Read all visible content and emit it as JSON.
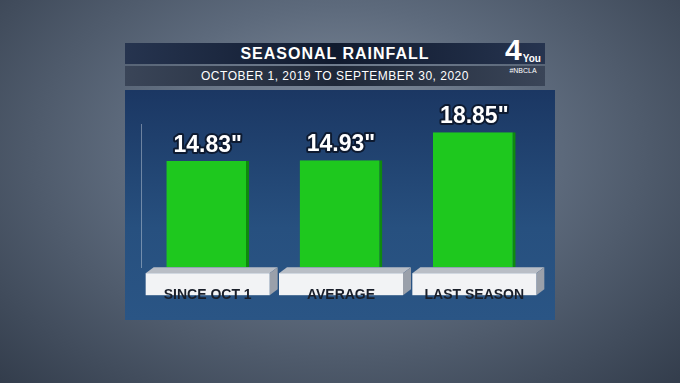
{
  "chart_data": {
    "type": "bar",
    "title": "SEASONAL RAINFALL",
    "subtitle": "OCTOBER 1, 2019 TO SEPTEMBER 30, 2020",
    "annotations": [
      "4",
      "You",
      "#NBCLA"
    ],
    "categories": [
      "SINCE OCT 1",
      "AVERAGE",
      "LAST SEASON"
    ],
    "values": [
      14.83,
      14.93,
      18.85
    ],
    "value_labels": [
      "14.83\"",
      "14.93\"",
      "18.85\""
    ],
    "color": "#1ec81e",
    "ylim": [
      0,
      20
    ],
    "grid": false,
    "data_labels": true,
    "tick_labels": "x"
  }
}
